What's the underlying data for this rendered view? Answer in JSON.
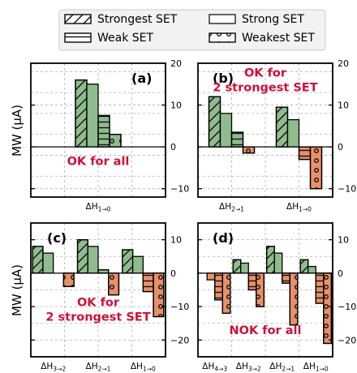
{
  "legend": {
    "position": "top-center",
    "items": [
      {
        "label": "Strongest SET",
        "pattern": "diag"
      },
      {
        "label": "Strong SET",
        "pattern": "none"
      },
      {
        "label": "Weak SET",
        "pattern": "hlines"
      },
      {
        "label": "Weakest SET",
        "pattern": "dots"
      }
    ]
  },
  "colors": {
    "pos": "#8fbc8f",
    "neg": "#e8906a",
    "annot": "#d0103a",
    "grid": "#b0b0b0"
  },
  "ylabel": "MW (μA)",
  "chart_data": [
    {
      "type": "bar",
      "panel": "(a)",
      "ylim": [
        -12,
        20
      ],
      "yticks": [
        -10,
        0,
        10,
        20
      ],
      "tick_side": "right",
      "annotation": "OK for all",
      "groups": [
        {
          "label": "ΔH",
          "sub": "1→0",
          "values": [
            16,
            15,
            7.5,
            3
          ]
        }
      ]
    },
    {
      "type": "bar",
      "panel": "(b)",
      "ylim": [
        -12,
        20
      ],
      "yticks": [
        -10,
        0,
        10,
        20
      ],
      "tick_side": "right",
      "annotation": "OK for\n2 strongest SET",
      "groups": [
        {
          "label": "ΔH",
          "sub": "2→1",
          "values": [
            12,
            8,
            3.5,
            -1.5
          ]
        },
        {
          "label": "ΔH",
          "sub": "1→0",
          "values": [
            9.5,
            6.5,
            -3,
            -10
          ]
        }
      ]
    },
    {
      "type": "bar",
      "panel": "(c)",
      "ylim": [
        -25,
        15
      ],
      "yticks": [
        -20,
        -10,
        0,
        10
      ],
      "tick_side": "right",
      "annotation": "OK for\n2 strongest SET",
      "groups": [
        {
          "label": "ΔH",
          "sub": "3→2",
          "values": [
            8,
            6,
            0,
            -4
          ]
        },
        {
          "label": "ΔH",
          "sub": "2→1",
          "values": [
            10,
            8,
            1,
            -6.5
          ]
        },
        {
          "label": "ΔH",
          "sub": "1→0",
          "values": [
            7,
            5,
            -5.5,
            -13
          ]
        }
      ]
    },
    {
      "type": "bar",
      "panel": "(d)",
      "ylim": [
        -25,
        15
      ],
      "yticks": [
        -20,
        -10,
        0,
        10
      ],
      "tick_side": "right",
      "annotation": "NOK for all",
      "groups": [
        {
          "label": "ΔH",
          "sub": "4→3",
          "values": [
            0,
            -2,
            -8,
            -12
          ]
        },
        {
          "label": "ΔH",
          "sub": "3→2",
          "values": [
            4,
            3,
            -5,
            -10
          ]
        },
        {
          "label": "ΔH",
          "sub": "2→1",
          "values": [
            8,
            6,
            -3,
            -15.5
          ]
        },
        {
          "label": "ΔH",
          "sub": "1→0",
          "values": [
            4,
            2,
            -9,
            -21
          ]
        }
      ]
    }
  ]
}
